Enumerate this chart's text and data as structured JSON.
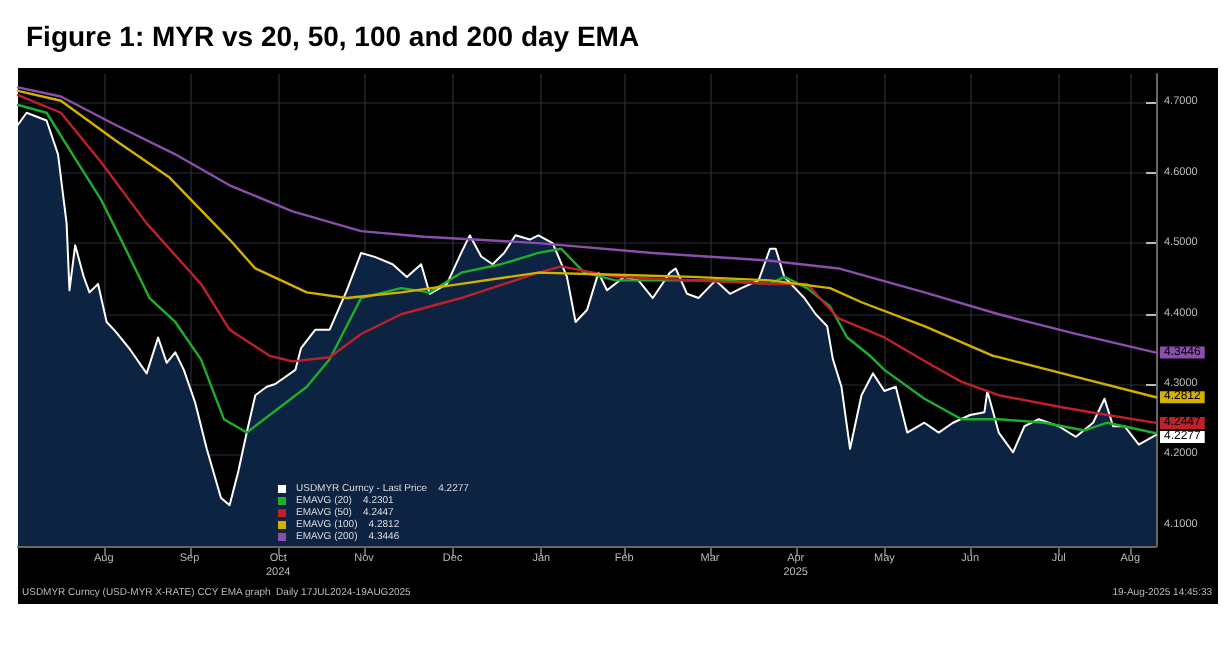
{
  "chart_data": {
    "type": "line",
    "title": "Figure 1: MYR vs 20, 50, 100 and 200 day EMA",
    "annotations": [
      "USDMYR Curncy (USD-MYR X-RATE) CCY EMA graph  Daily 17JUL2024-19AUG2025",
      "19-Aug-2025 14:45:33"
    ],
    "xlim": [
      "2024-07-17",
      "2025-08-19"
    ],
    "xticks": [
      {
        "value": "2024-08-16",
        "label": "Aug"
      },
      {
        "value": "2024-09-15",
        "label": "Sep"
      },
      {
        "value": "2024-10-16",
        "label": "Oct\n2024"
      },
      {
        "value": "2024-11-15",
        "label": "Nov"
      },
      {
        "value": "2024-12-16",
        "label": "Dec"
      },
      {
        "value": "2025-01-16",
        "label": "Jan"
      },
      {
        "value": "2025-02-14",
        "label": "Feb"
      },
      {
        "value": "2025-03-16",
        "label": "Mar"
      },
      {
        "value": "2025-04-15",
        "label": "Apr\n2025"
      },
      {
        "value": "2025-05-16",
        "label": "May"
      },
      {
        "value": "2025-06-15",
        "label": "Jun"
      },
      {
        "value": "2025-07-16",
        "label": "Jul"
      },
      {
        "value": "2025-08-10",
        "label": "Aug"
      }
    ],
    "ylim": [
      4.07,
      4.74
    ],
    "yticks": [
      {
        "value": 4.1,
        "label": "4.1000"
      },
      {
        "value": 4.2,
        "label": "4.2000"
      },
      {
        "value": 4.3,
        "label": "4.3000"
      },
      {
        "value": 4.4,
        "label": "4.4000"
      },
      {
        "value": 4.5,
        "label": "4.5000"
      },
      {
        "value": 4.6,
        "label": "4.6000"
      },
      {
        "value": 4.7,
        "label": "4.7000"
      }
    ],
    "grid": true,
    "legend": "bottom left",
    "marker": "none",
    "line_style": "solid",
    "series": [
      {
        "name": "USDMYR Curncy - Last Price    4.2277",
        "type": "area",
        "color": "#ffffff",
        "x": [
          "2024-07-17",
          "2024-07-20",
          "2024-07-27",
          "2024-07-31",
          "2024-08-03",
          "2024-08-04",
          "2024-08-06",
          "2024-08-09",
          "2024-08-11",
          "2024-08-14",
          "2024-08-17",
          "2024-08-20",
          "2024-08-25",
          "2024-08-31",
          "2024-09-04",
          "2024-09-07",
          "2024-09-10",
          "2024-09-13",
          "2024-09-17",
          "2024-09-21",
          "2024-09-26",
          "2024-09-29",
          "2024-10-02",
          "2024-10-05",
          "2024-10-08",
          "2024-10-12",
          "2024-10-15",
          "2024-10-22",
          "2024-10-24",
          "2024-10-29",
          "2024-11-03",
          "2024-11-09",
          "2024-11-14",
          "2024-11-19",
          "2024-11-25",
          "2024-11-30",
          "2024-12-05",
          "2024-12-08",
          "2024-12-14",
          "2024-12-19",
          "2024-12-22",
          "2024-12-26",
          "2024-12-30",
          "2025-01-03",
          "2025-01-07",
          "2025-01-12",
          "2025-01-15",
          "2025-01-20",
          "2025-01-25",
          "2025-01-28",
          "2025-02-01",
          "2025-02-05",
          "2025-02-08",
          "2025-02-14",
          "2025-02-19",
          "2025-02-24",
          "2025-03-02",
          "2025-03-04",
          "2025-03-08",
          "2025-03-12",
          "2025-03-18",
          "2025-03-23",
          "2025-03-27",
          "2025-04-02",
          "2025-04-06",
          "2025-04-08",
          "2025-04-11",
          "2025-04-18",
          "2025-04-22",
          "2025-04-26",
          "2025-04-28",
          "2025-05-01",
          "2025-05-04",
          "2025-05-08",
          "2025-05-12",
          "2025-05-16",
          "2025-05-20",
          "2025-05-24",
          "2025-05-30",
          "2025-06-04",
          "2025-06-09",
          "2025-06-15",
          "2025-06-20",
          "2025-06-21",
          "2025-06-25",
          "2025-06-30",
          "2025-07-04",
          "2025-07-09",
          "2025-07-16",
          "2025-07-22",
          "2025-07-28",
          "2025-08-01",
          "2025-08-04",
          "2025-08-08",
          "2025-08-13",
          "2025-08-19"
        ],
        "values": [
          4.668,
          4.685,
          4.674,
          4.626,
          4.528,
          4.433,
          4.497,
          4.452,
          4.43,
          4.442,
          4.388,
          4.375,
          4.35,
          4.315,
          4.366,
          4.33,
          4.345,
          4.32,
          4.273,
          4.208,
          4.138,
          4.128,
          4.175,
          4.231,
          4.284,
          4.296,
          4.3,
          4.32,
          4.351,
          4.377,
          4.377,
          4.433,
          4.486,
          4.48,
          4.47,
          4.452,
          4.47,
          4.428,
          4.442,
          4.486,
          4.511,
          4.481,
          4.47,
          4.486,
          4.511,
          4.505,
          4.511,
          4.5,
          4.452,
          4.388,
          4.405,
          4.458,
          4.433,
          4.452,
          4.447,
          4.422,
          4.458,
          4.464,
          4.428,
          4.422,
          4.447,
          4.428,
          4.436,
          4.447,
          4.492,
          4.492,
          4.452,
          4.422,
          4.399,
          4.382,
          4.335,
          4.296,
          4.208,
          4.284,
          4.315,
          4.29,
          4.296,
          4.231,
          4.245,
          4.231,
          4.245,
          4.256,
          4.26,
          4.29,
          4.231,
          4.203,
          4.24,
          4.25,
          4.24,
          4.225,
          4.245,
          4.279,
          4.24,
          4.24,
          4.214,
          4.2277
        ],
        "value_labels": [
          null,
          null,
          null,
          null,
          null,
          null,
          null,
          null,
          null,
          null,
          null,
          null,
          null,
          null,
          null,
          null,
          null,
          null,
          null,
          null,
          null,
          null,
          null,
          null,
          null,
          null,
          null,
          null,
          null,
          null,
          null,
          null,
          null,
          null,
          null,
          null,
          null,
          null,
          null,
          null,
          null,
          null,
          null,
          null,
          null,
          null,
          null,
          null,
          null,
          null,
          null,
          null,
          null,
          null,
          null,
          null,
          null,
          null,
          null,
          null,
          null,
          null,
          null,
          null,
          null,
          null,
          null,
          null,
          null,
          null,
          null,
          null,
          null,
          null,
          null,
          null,
          null,
          null,
          null,
          null,
          null,
          null,
          null,
          null,
          null,
          null,
          null,
          null,
          null,
          null,
          null,
          null,
          null,
          null,
          null,
          "4.2277"
        ]
      },
      {
        "name": "EMAVG (20)    4.2301",
        "color": "#1fae2a",
        "x": [
          "2024-07-17",
          "2024-07-27",
          "2024-08-06",
          "2024-08-15",
          "2024-08-23",
          "2024-09-01",
          "2024-09-10",
          "2024-09-19",
          "2024-09-27",
          "2024-10-05",
          "2024-10-15",
          "2024-10-26",
          "2024-11-03",
          "2024-11-14",
          "2024-11-28",
          "2024-12-08",
          "2024-12-19",
          "2025-01-02",
          "2025-01-15",
          "2025-01-23",
          "2025-01-31",
          "2025-02-11",
          "2025-03-02",
          "2025-03-21",
          "2025-04-06",
          "2025-04-11",
          "2025-04-19",
          "2025-04-27",
          "2025-05-03",
          "2025-05-11",
          "2025-05-16",
          "2025-05-30",
          "2025-06-12",
          "2025-06-25",
          "2025-07-11",
          "2025-07-25",
          "2025-08-02",
          "2025-08-19"
        ],
        "values": [
          4.696,
          4.685,
          4.62,
          4.562,
          4.497,
          4.422,
          4.388,
          4.335,
          4.25,
          4.231,
          4.262,
          4.296,
          4.335,
          4.422,
          4.436,
          4.43,
          4.458,
          4.47,
          4.486,
          4.492,
          4.458,
          4.447,
          4.447,
          4.447,
          4.442,
          4.452,
          4.436,
          4.41,
          4.366,
          4.34,
          4.32,
          4.279,
          4.25,
          4.25,
          4.245,
          4.234,
          4.245,
          4.2301
        ]
      },
      {
        "name": "EMAVG (50)    4.2447",
        "color": "#c0202c",
        "value_labels": [
          null,
          null,
          null,
          null,
          null,
          null,
          null,
          null,
          null,
          null,
          null,
          null,
          null,
          null,
          null,
          null,
          null,
          null,
          null,
          null,
          null,
          null,
          null,
          null,
          null,
          "4.2447"
        ],
        "x": [
          "2024-07-17",
          "2024-08-01",
          "2024-08-15",
          "2024-08-31",
          "2024-09-19",
          "2024-09-29",
          "2024-10-13",
          "2024-10-21",
          "2024-11-03",
          "2024-11-14",
          "2024-11-28",
          "2024-12-19",
          "2025-01-15",
          "2025-01-23",
          "2025-02-11",
          "2025-03-10",
          "2025-04-06",
          "2025-04-19",
          "2025-04-30",
          "2025-05-16",
          "2025-06-01",
          "2025-06-12",
          "2025-06-25",
          "2025-07-17",
          "2025-08-02",
          "2025-08-19"
        ],
        "values": [
          4.71,
          4.685,
          4.615,
          4.528,
          4.442,
          4.377,
          4.34,
          4.332,
          4.338,
          4.371,
          4.399,
          4.422,
          4.458,
          4.467,
          4.452,
          4.447,
          4.442,
          4.442,
          4.393,
          4.366,
          4.328,
          4.303,
          4.284,
          4.267,
          4.256,
          4.2447
        ]
      },
      {
        "name": "EMAVG (100)    4.2812",
        "color": "#d4b000",
        "value_labels": [
          null,
          null,
          null,
          null,
          null,
          null,
          null,
          null,
          null,
          null,
          null,
          null,
          null,
          null,
          null,
          null,
          null,
          null,
          null,
          null,
          "4.2812"
        ],
        "x": [
          "2024-07-17",
          "2024-08-01",
          "2024-08-20",
          "2024-09-08",
          "2024-09-29",
          "2024-10-08",
          "2024-10-26",
          "2024-11-09",
          "2024-11-28",
          "2024-12-19",
          "2025-01-15",
          "2025-02-11",
          "2025-03-10",
          "2025-04-06",
          "2025-04-27",
          "2025-05-08",
          "2025-05-30",
          "2025-06-23",
          "2025-06-25",
          "2025-07-22",
          "2025-08-19"
        ],
        "values": [
          4.716,
          4.702,
          4.646,
          4.593,
          4.505,
          4.464,
          4.43,
          4.422,
          4.43,
          4.442,
          4.458,
          4.455,
          4.452,
          4.447,
          4.436,
          4.416,
          4.382,
          4.34,
          4.338,
          4.31,
          4.2812
        ]
      },
      {
        "name": "EMAVG (200)    4.3446",
        "color": "#8a4fae",
        "value_labels": [
          null,
          null,
          null,
          null,
          null,
          null,
          null,
          null,
          null,
          null,
          null,
          null,
          null,
          null,
          null,
          "4.3446"
        ],
        "x": [
          "2024-07-17",
          "2024-08-01",
          "2024-08-20",
          "2024-09-10",
          "2024-09-29",
          "2024-10-21",
          "2024-11-14",
          "2024-12-06",
          "2025-01-15",
          "2025-02-24",
          "2025-04-06",
          "2025-04-30",
          "2025-05-30",
          "2025-06-25",
          "2025-07-22",
          "2025-08-19"
        ],
        "values": [
          4.721,
          4.708,
          4.668,
          4.626,
          4.582,
          4.545,
          4.517,
          4.509,
          4.5,
          4.486,
          4.475,
          4.464,
          4.43,
          4.399,
          4.371,
          4.3446
        ]
      }
    ]
  }
}
